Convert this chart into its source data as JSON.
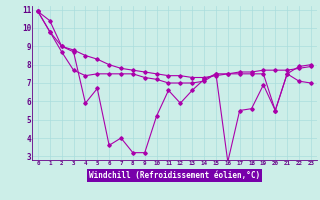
{
  "xlabel": "Windchill (Refroidissement éolien,°C)",
  "background_color": "#cceee8",
  "xlabel_bg_color": "#6600aa",
  "grid_color": "#aadddd",
  "line_color": "#aa00aa",
  "tick_color": "#660088",
  "xlim": [
    -0.5,
    23.5
  ],
  "ylim": [
    2.8,
    11.2
  ],
  "yticks": [
    3,
    4,
    5,
    6,
    7,
    8,
    9,
    10,
    11
  ],
  "xticks": [
    0,
    1,
    2,
    3,
    4,
    5,
    6,
    7,
    8,
    9,
    10,
    11,
    12,
    13,
    14,
    15,
    16,
    17,
    18,
    19,
    20,
    21,
    22,
    23
  ],
  "series1": [
    10.9,
    10.4,
    9.0,
    8.7,
    5.9,
    6.7,
    3.6,
    4.0,
    3.2,
    3.2,
    5.2,
    6.6,
    5.9,
    6.6,
    7.2,
    7.5,
    2.7,
    5.5,
    5.6,
    6.9,
    5.5,
    7.5,
    7.9,
    8.0
  ],
  "series2": [
    10.9,
    9.8,
    9.0,
    8.8,
    8.5,
    8.3,
    8.0,
    7.8,
    7.7,
    7.6,
    7.5,
    7.4,
    7.4,
    7.3,
    7.3,
    7.4,
    7.5,
    7.6,
    7.6,
    7.7,
    7.7,
    7.7,
    7.8,
    7.9
  ],
  "series3": [
    10.9,
    9.8,
    8.7,
    7.7,
    7.4,
    7.5,
    7.5,
    7.5,
    7.5,
    7.3,
    7.2,
    7.0,
    7.0,
    7.0,
    7.1,
    7.5,
    7.5,
    7.5,
    7.5,
    7.5,
    5.5,
    7.5,
    7.1,
    7.0
  ]
}
